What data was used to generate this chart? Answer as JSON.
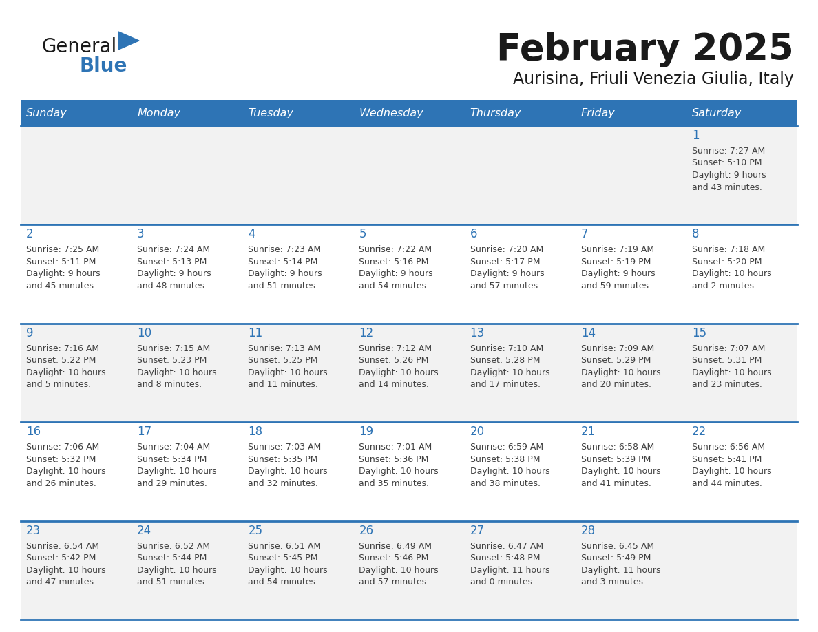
{
  "title": "February 2025",
  "subtitle": "Aurisina, Friuli Venezia Giulia, Italy",
  "days_of_week": [
    "Sunday",
    "Monday",
    "Tuesday",
    "Wednesday",
    "Thursday",
    "Friday",
    "Saturday"
  ],
  "header_bg_color": "#2E74B5",
  "header_text_color": "#FFFFFF",
  "row0_bg": "#F2F2F2",
  "row1_bg": "#FFFFFF",
  "row2_bg": "#F2F2F2",
  "row3_bg": "#FFFFFF",
  "row4_bg": "#F2F2F2",
  "line_color": "#2E74B5",
  "day_number_color": "#2E74B5",
  "cell_text_color": "#404040",
  "title_color": "#1A1A1A",
  "subtitle_color": "#1A1A1A",
  "logo_blue": "#2E74B5",
  "logo_black": "#1A1A1A",
  "calendar_data": [
    [
      {
        "day": null,
        "info": ""
      },
      {
        "day": null,
        "info": ""
      },
      {
        "day": null,
        "info": ""
      },
      {
        "day": null,
        "info": ""
      },
      {
        "day": null,
        "info": ""
      },
      {
        "day": null,
        "info": ""
      },
      {
        "day": 1,
        "info": "Sunrise: 7:27 AM\nSunset: 5:10 PM\nDaylight: 9 hours\nand 43 minutes."
      }
    ],
    [
      {
        "day": 2,
        "info": "Sunrise: 7:25 AM\nSunset: 5:11 PM\nDaylight: 9 hours\nand 45 minutes."
      },
      {
        "day": 3,
        "info": "Sunrise: 7:24 AM\nSunset: 5:13 PM\nDaylight: 9 hours\nand 48 minutes."
      },
      {
        "day": 4,
        "info": "Sunrise: 7:23 AM\nSunset: 5:14 PM\nDaylight: 9 hours\nand 51 minutes."
      },
      {
        "day": 5,
        "info": "Sunrise: 7:22 AM\nSunset: 5:16 PM\nDaylight: 9 hours\nand 54 minutes."
      },
      {
        "day": 6,
        "info": "Sunrise: 7:20 AM\nSunset: 5:17 PM\nDaylight: 9 hours\nand 57 minutes."
      },
      {
        "day": 7,
        "info": "Sunrise: 7:19 AM\nSunset: 5:19 PM\nDaylight: 9 hours\nand 59 minutes."
      },
      {
        "day": 8,
        "info": "Sunrise: 7:18 AM\nSunset: 5:20 PM\nDaylight: 10 hours\nand 2 minutes."
      }
    ],
    [
      {
        "day": 9,
        "info": "Sunrise: 7:16 AM\nSunset: 5:22 PM\nDaylight: 10 hours\nand 5 minutes."
      },
      {
        "day": 10,
        "info": "Sunrise: 7:15 AM\nSunset: 5:23 PM\nDaylight: 10 hours\nand 8 minutes."
      },
      {
        "day": 11,
        "info": "Sunrise: 7:13 AM\nSunset: 5:25 PM\nDaylight: 10 hours\nand 11 minutes."
      },
      {
        "day": 12,
        "info": "Sunrise: 7:12 AM\nSunset: 5:26 PM\nDaylight: 10 hours\nand 14 minutes."
      },
      {
        "day": 13,
        "info": "Sunrise: 7:10 AM\nSunset: 5:28 PM\nDaylight: 10 hours\nand 17 minutes."
      },
      {
        "day": 14,
        "info": "Sunrise: 7:09 AM\nSunset: 5:29 PM\nDaylight: 10 hours\nand 20 minutes."
      },
      {
        "day": 15,
        "info": "Sunrise: 7:07 AM\nSunset: 5:31 PM\nDaylight: 10 hours\nand 23 minutes."
      }
    ],
    [
      {
        "day": 16,
        "info": "Sunrise: 7:06 AM\nSunset: 5:32 PM\nDaylight: 10 hours\nand 26 minutes."
      },
      {
        "day": 17,
        "info": "Sunrise: 7:04 AM\nSunset: 5:34 PM\nDaylight: 10 hours\nand 29 minutes."
      },
      {
        "day": 18,
        "info": "Sunrise: 7:03 AM\nSunset: 5:35 PM\nDaylight: 10 hours\nand 32 minutes."
      },
      {
        "day": 19,
        "info": "Sunrise: 7:01 AM\nSunset: 5:36 PM\nDaylight: 10 hours\nand 35 minutes."
      },
      {
        "day": 20,
        "info": "Sunrise: 6:59 AM\nSunset: 5:38 PM\nDaylight: 10 hours\nand 38 minutes."
      },
      {
        "day": 21,
        "info": "Sunrise: 6:58 AM\nSunset: 5:39 PM\nDaylight: 10 hours\nand 41 minutes."
      },
      {
        "day": 22,
        "info": "Sunrise: 6:56 AM\nSunset: 5:41 PM\nDaylight: 10 hours\nand 44 minutes."
      }
    ],
    [
      {
        "day": 23,
        "info": "Sunrise: 6:54 AM\nSunset: 5:42 PM\nDaylight: 10 hours\nand 47 minutes."
      },
      {
        "day": 24,
        "info": "Sunrise: 6:52 AM\nSunset: 5:44 PM\nDaylight: 10 hours\nand 51 minutes."
      },
      {
        "day": 25,
        "info": "Sunrise: 6:51 AM\nSunset: 5:45 PM\nDaylight: 10 hours\nand 54 minutes."
      },
      {
        "day": 26,
        "info": "Sunrise: 6:49 AM\nSunset: 5:46 PM\nDaylight: 10 hours\nand 57 minutes."
      },
      {
        "day": 27,
        "info": "Sunrise: 6:47 AM\nSunset: 5:48 PM\nDaylight: 11 hours\nand 0 minutes."
      },
      {
        "day": 28,
        "info": "Sunrise: 6:45 AM\nSunset: 5:49 PM\nDaylight: 11 hours\nand 3 minutes."
      },
      {
        "day": null,
        "info": ""
      }
    ]
  ]
}
